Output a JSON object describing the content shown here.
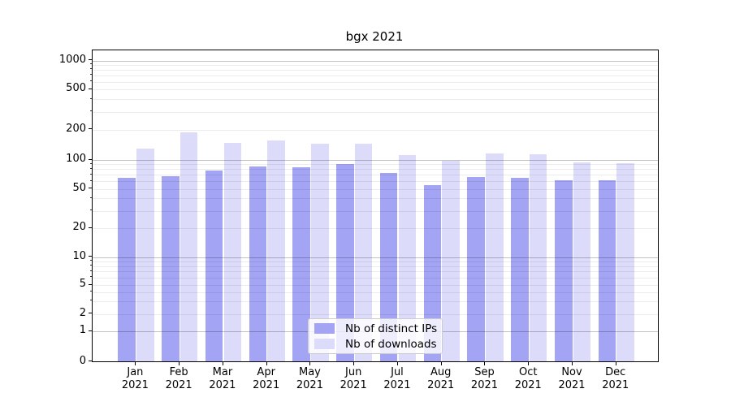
{
  "title": "bgx 2021",
  "legend": {
    "items": [
      {
        "label": "Nb of distinct IPs"
      },
      {
        "label": "Nb of downloads"
      }
    ]
  },
  "axes": {
    "y_tick_labels": [
      "0",
      "1",
      "2",
      "5",
      "10",
      "20",
      "50",
      "100",
      "200",
      "500",
      "1000"
    ],
    "y_tick_values": [
      0,
      1,
      2,
      5,
      10,
      20,
      50,
      100,
      200,
      500,
      1000
    ],
    "y_minor_values": [
      3,
      4,
      6,
      7,
      8,
      9,
      30,
      40,
      60,
      70,
      80,
      90,
      300,
      400,
      600,
      700,
      800,
      900
    ],
    "y_major_values": [
      1,
      10,
      100,
      1000
    ],
    "x_tick_labels": [
      {
        "month": "Jan",
        "year": "2021"
      },
      {
        "month": "Feb",
        "year": "2021"
      },
      {
        "month": "Mar",
        "year": "2021"
      },
      {
        "month": "Apr",
        "year": "2021"
      },
      {
        "month": "May",
        "year": "2021"
      },
      {
        "month": "Jun",
        "year": "2021"
      },
      {
        "month": "Jul",
        "year": "2021"
      },
      {
        "month": "Aug",
        "year": "2021"
      },
      {
        "month": "Sep",
        "year": "2021"
      },
      {
        "month": "Oct",
        "year": "2021"
      },
      {
        "month": "Nov",
        "year": "2021"
      },
      {
        "month": "Dec",
        "year": "2021"
      }
    ]
  },
  "chart_data": {
    "type": "bar",
    "title": "bgx 2021",
    "categories": [
      "Jan 2021",
      "Feb 2021",
      "Mar 2021",
      "Apr 2021",
      "May 2021",
      "Jun 2021",
      "Jul 2021",
      "Aug 2021",
      "Sep 2021",
      "Oct 2021",
      "Nov 2021",
      "Dec 2021"
    ],
    "series": [
      {
        "name": "Nb of distinct IPs",
        "color": "#a4a4f4",
        "values": [
          65,
          68,
          78,
          85,
          84,
          91,
          73,
          55,
          66,
          65,
          61,
          61
        ]
      },
      {
        "name": "Nb of downloads",
        "color": "#dcdcfa",
        "values": [
          129,
          187,
          147,
          156,
          146,
          146,
          111,
          99,
          115,
          113,
          95,
          93
        ]
      }
    ],
    "xlabel": "",
    "ylabel": "",
    "yscale": "symlog",
    "y_ticks": [
      0,
      1,
      2,
      5,
      10,
      20,
      50,
      100,
      200,
      500,
      1000
    ],
    "ylim": [
      0,
      1300
    ],
    "grid": true,
    "legend_position": "lower center"
  }
}
